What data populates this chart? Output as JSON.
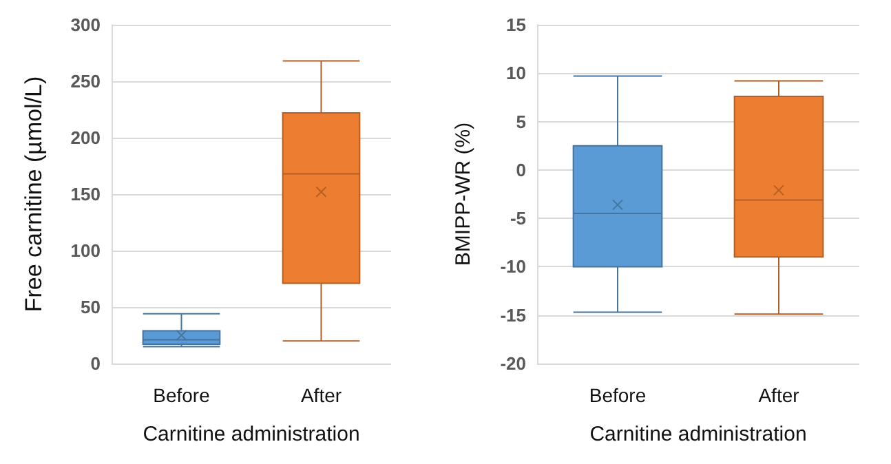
{
  "chart_data": [
    {
      "type": "box",
      "ylabel": "Free carnitine (µmol/L)",
      "xlabel": "Carnitine administration",
      "categories": [
        "Before",
        "After"
      ],
      "colors": [
        "#5b9bd5",
        "#ed7d31"
      ],
      "boxes": [
        {
          "low": 15,
          "q1": 17,
          "median": 21,
          "q3": 29,
          "high": 44,
          "mean": 25
        },
        {
          "low": 20,
          "q1": 71,
          "median": 168,
          "q3": 222,
          "high": 268,
          "mean": 152
        }
      ],
      "ylim": [
        0,
        300
      ],
      "yticks": [
        0,
        50,
        100,
        150,
        200,
        250,
        300
      ],
      "grid": "y",
      "marker": "cross"
    },
    {
      "type": "box",
      "ylabel": "BMIPP-WR (%)",
      "xlabel": "Carnitine administration",
      "categories": [
        "Before",
        "After"
      ],
      "colors": [
        "#5b9bd5",
        "#ed7d31"
      ],
      "boxes": [
        {
          "low": -14.7,
          "q1": -10,
          "median": -4.5,
          "q3": 2.5,
          "high": 9.7,
          "mean": -3.6
        },
        {
          "low": -14.9,
          "q1": -9,
          "median": -3.1,
          "q3": 7.6,
          "high": 9.2,
          "mean": -2.1
        }
      ],
      "ylim": [
        -20,
        15
      ],
      "yticks": [
        -20,
        -15,
        -10,
        -5,
        0,
        5,
        10,
        15
      ],
      "grid": "y",
      "marker": "cross"
    }
  ]
}
